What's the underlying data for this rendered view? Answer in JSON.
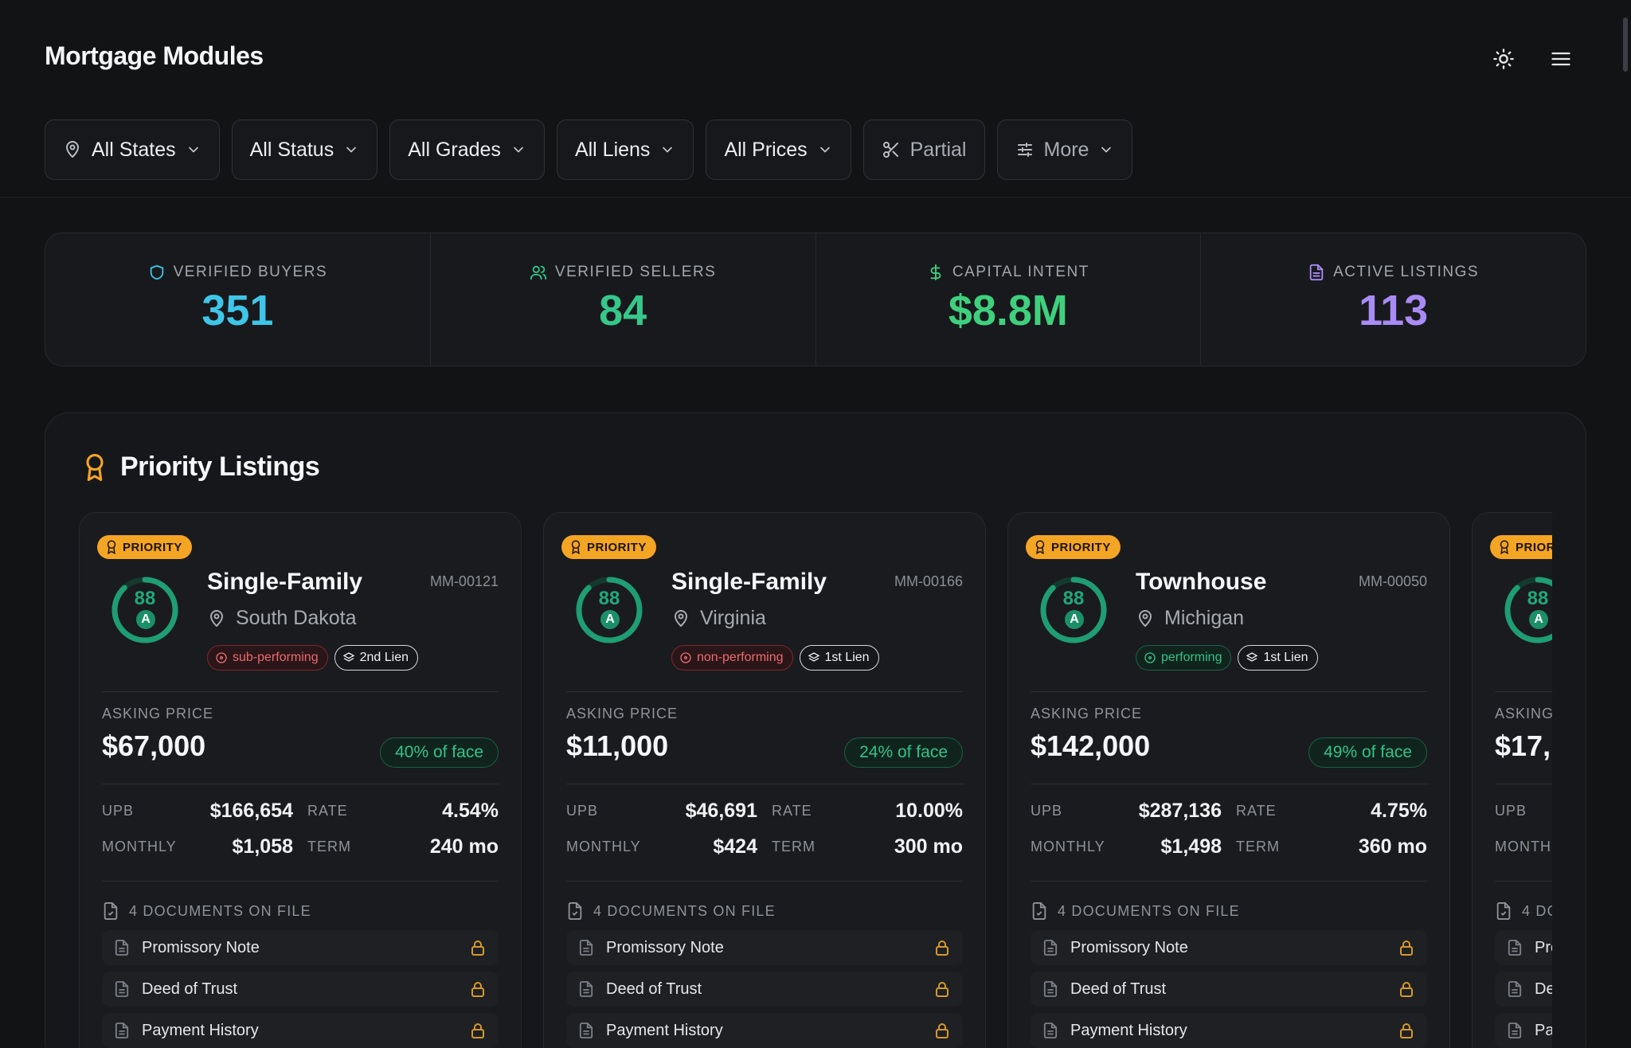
{
  "header": {
    "title": "Mortgage Modules",
    "theme_icon": "sun-icon",
    "menu_icon": "menu-icon"
  },
  "filters": [
    {
      "label": "All States",
      "icon": "map-pin-icon",
      "has_chevron": true
    },
    {
      "label": "All Status",
      "icon": "",
      "has_chevron": true
    },
    {
      "label": "All Grades",
      "icon": "",
      "has_chevron": true
    },
    {
      "label": "All Liens",
      "icon": "",
      "has_chevron": true
    },
    {
      "label": "All Prices",
      "icon": "",
      "has_chevron": true
    },
    {
      "label": "Partial",
      "icon": "scissors-icon",
      "has_chevron": false
    },
    {
      "label": "More",
      "icon": "sliders-icon",
      "has_chevron": true
    }
  ],
  "stats": [
    {
      "label": "VERIFIED BUYERS",
      "value": "351",
      "color": "#3ec6e8",
      "icon": "shield-icon",
      "icon_color": "#3ec6e8"
    },
    {
      "label": "VERIFIED SELLERS",
      "value": "84",
      "color": "#36c78b",
      "icon": "users-icon",
      "icon_color": "#36c78b"
    },
    {
      "label": "CAPITAL INTENT",
      "value": "$8.8M",
      "color": "#3fd07e",
      "icon": "dollar-icon",
      "icon_color": "#3fd07e"
    },
    {
      "label": "ACTIVE LISTINGS",
      "value": "113",
      "color": "#a98bf5",
      "icon": "document-icon",
      "icon_color": "#a98bf5"
    }
  ],
  "priority": {
    "title": "Priority Listings",
    "icon": "award-icon",
    "labels": {
      "badge": "PRIORITY",
      "asking": "ASKING PRICE",
      "upb": "UPB",
      "rate": "RATE",
      "monthly": "MONTHLY",
      "term": "TERM"
    },
    "cards": [
      {
        "type": "Single-Family",
        "id": "MM-00121",
        "score": "88",
        "score_fraction": 0.88,
        "grade": "A",
        "location": "South Dakota",
        "status": "sub-performing",
        "status_kind": "bad",
        "lien": "2nd Lien",
        "asking": "$67,000",
        "face": "40% of face",
        "upb": "$166,654",
        "rate": "4.54%",
        "monthly": "$1,058",
        "term": "240 mo",
        "docs_title": "4 DOCUMENTS ON FILE",
        "docs": [
          "Promissory Note",
          "Deed of Trust",
          "Payment History"
        ]
      },
      {
        "type": "Single-Family",
        "id": "MM-00166",
        "score": "88",
        "score_fraction": 0.88,
        "grade": "A",
        "location": "Virginia",
        "status": "non-performing",
        "status_kind": "bad",
        "lien": "1st Lien",
        "asking": "$11,000",
        "face": "24% of face",
        "upb": "$46,691",
        "rate": "10.00%",
        "monthly": "$424",
        "term": "300 mo",
        "docs_title": "4 DOCUMENTS ON FILE",
        "docs": [
          "Promissory Note",
          "Deed of Trust",
          "Payment History"
        ]
      },
      {
        "type": "Townhouse",
        "id": "MM-00050",
        "score": "88",
        "score_fraction": 0.88,
        "grade": "A",
        "location": "Michigan",
        "status": "performing",
        "status_kind": "good",
        "lien": "1st Lien",
        "asking": "$142,000",
        "face": "49% of face",
        "upb": "$287,136",
        "rate": "4.75%",
        "monthly": "$1,498",
        "term": "360 mo",
        "docs_title": "4 DOCUMENTS ON FILE",
        "docs": [
          "Promissory Note",
          "Deed of Trust",
          "Payment History"
        ]
      },
      {
        "type": "",
        "id": "",
        "score": "88",
        "score_fraction": 0.88,
        "grade": "A",
        "location": "",
        "status": "",
        "status_kind": "",
        "lien": "",
        "asking": "$17,",
        "face": "",
        "upb": "",
        "rate": "",
        "monthly": "",
        "term": "",
        "docs_title": "4 DO",
        "docs": [
          "Pro",
          "De",
          "Pa"
        ]
      }
    ]
  }
}
